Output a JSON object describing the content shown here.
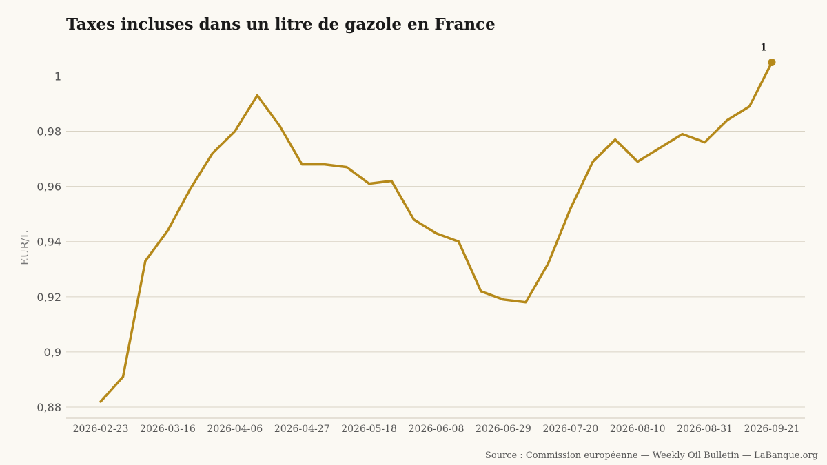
{
  "chart_data": {
    "type": "line",
    "title": "Taxes incluses dans un litre de gazole en France",
    "ylabel": "EUR/L",
    "xlabel": "",
    "source": "Source : Commission européenne — Weekly Oil Bulletin — LaBanque.org",
    "ylim": [
      0.876,
      1.011
    ],
    "yticks": [
      0.88,
      0.9,
      0.92,
      0.94,
      0.96,
      0.98,
      1
    ],
    "ytick_labels": [
      "0,88",
      "0,9",
      "0,92",
      "0,94",
      "0,96",
      "0,98",
      "1"
    ],
    "xtick_labels": [
      "2026-02-23",
      "2026-03-16",
      "2026-04-06",
      "2026-04-27",
      "2026-05-18",
      "2026-06-08",
      "2026-06-29",
      "2026-07-20",
      "2026-08-10",
      "2026-08-31",
      "2026-09-21"
    ],
    "xtick_every": 3,
    "grid": true,
    "line_color": "#b5891a",
    "x": [
      "2026-02-23",
      "2026-03-02",
      "2026-03-09",
      "2026-03-16",
      "2026-03-23",
      "2026-03-30",
      "2026-04-06",
      "2026-04-13",
      "2026-04-20",
      "2026-04-27",
      "2026-05-04",
      "2026-05-11",
      "2026-05-18",
      "2026-05-25",
      "2026-06-01",
      "2026-06-08",
      "2026-06-15",
      "2026-06-22",
      "2026-06-29",
      "2026-07-06",
      "2026-07-13",
      "2026-07-20",
      "2026-07-27",
      "2026-08-03",
      "2026-08-10",
      "2026-08-17",
      "2026-08-24",
      "2026-08-31",
      "2026-09-07",
      "2026-09-14",
      "2026-09-21"
    ],
    "series": [
      {
        "values": [
          0.882,
          0.891,
          0.933,
          0.944,
          0.959,
          0.972,
          0.98,
          0.993,
          0.982,
          0.968,
          0.968,
          0.967,
          0.961,
          0.962,
          0.948,
          0.943,
          0.94,
          0.922,
          0.919,
          0.918,
          0.932,
          0.952,
          0.969,
          0.977,
          0.969,
          0.974,
          0.979,
          0.976,
          0.984,
          0.989,
          1.005
        ]
      }
    ],
    "annotation": {
      "index": 30,
      "text": "1"
    }
  }
}
